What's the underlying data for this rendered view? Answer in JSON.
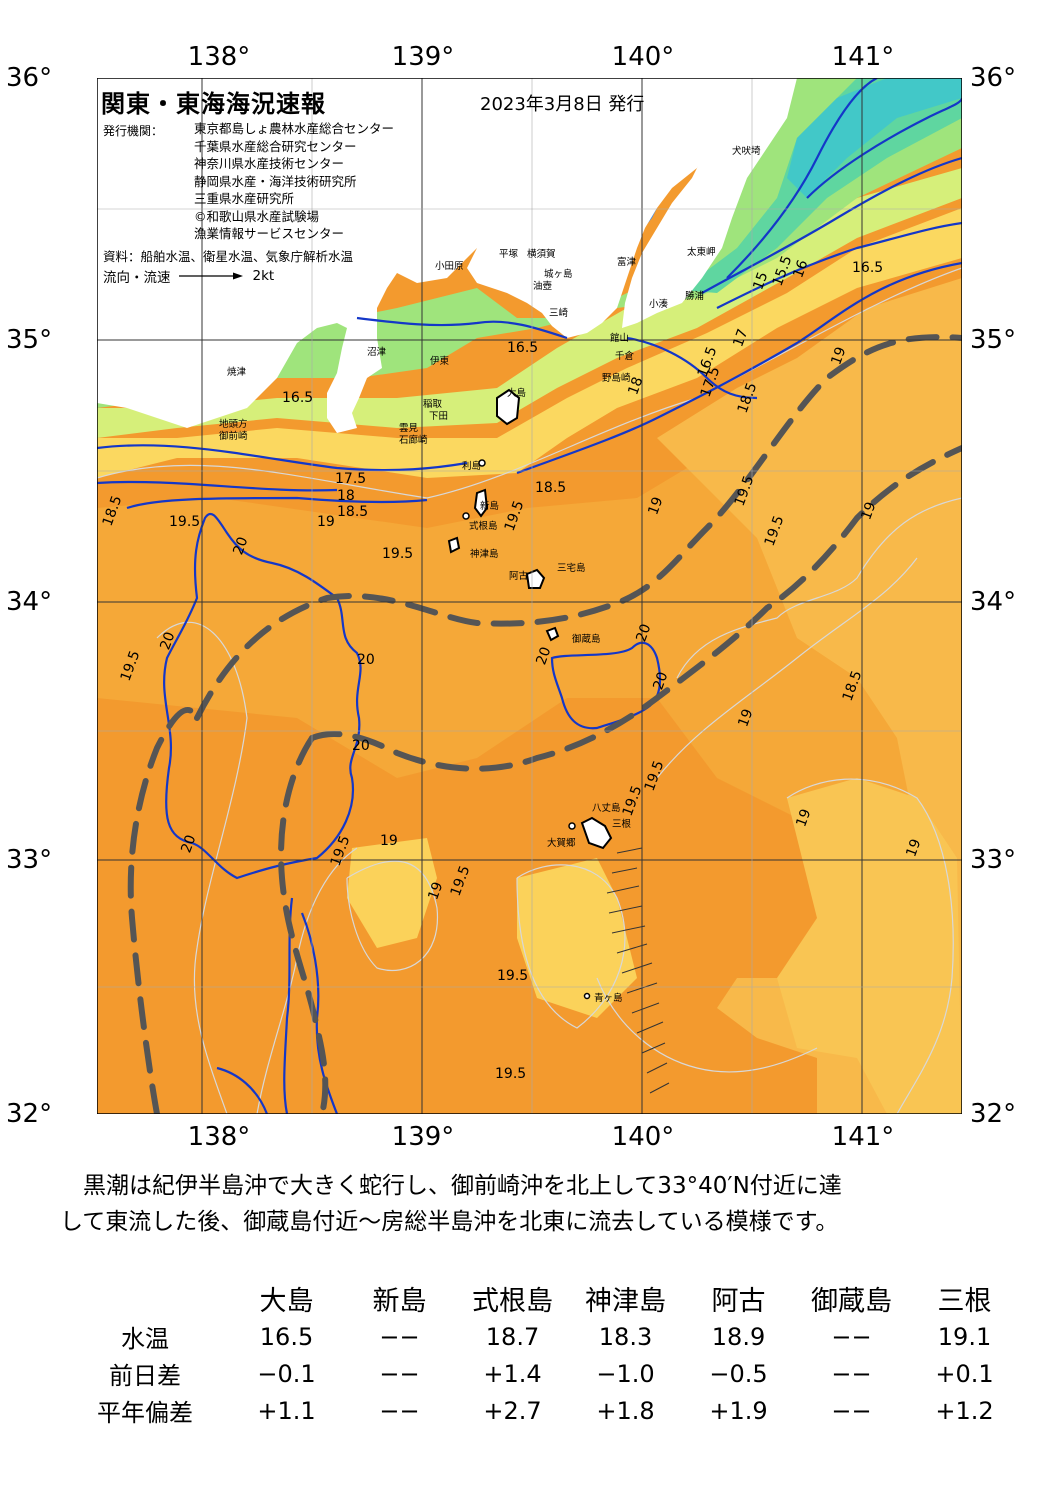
{
  "header": {
    "title": "関東・東海海況速報",
    "issue_date": "2023年3月8日 発行",
    "issuer_label": "発行機関：",
    "issuers": [
      "東京都島しょ農林水産総合センター",
      "千葉県水産総合研究センター",
      "神奈川県水産技術センター",
      "静岡県水産・海洋技術研究所",
      "三重県水産研究所",
      "©和歌山県水産試験場",
      "漁業情報サービスセンター"
    ],
    "source": "資料：船舶水温、衛星水温、気象庁解析水温",
    "flow_label": "流向・流速",
    "flow_scale": "2kt"
  },
  "axes": {
    "lon_top": [
      "138°",
      "139°",
      "140°",
      "141°"
    ],
    "lon_bottom": [
      "138°",
      "139°",
      "140°",
      "141°"
    ],
    "lat_left": [
      "36°",
      "35°",
      "34°",
      "33°",
      "32°"
    ],
    "lat_right": [
      "36°",
      "35°",
      "34°",
      "33°",
      "32°"
    ]
  },
  "place_names": {
    "tsuzaki": "焼津",
    "omaezaki": "御前崎",
    "chikyu": "地頭方",
    "numazu": "沼津",
    "ito": "伊東",
    "inatori": "稲取",
    "shimoda": "下田",
    "iro": "石廊崎",
    "mera": "雲見",
    "odawara": "小田原",
    "hiratsuka": "平塚",
    "yokosuka": "横須賀",
    "jogashima": "城ヶ島",
    "miura": "三崎",
    "aburatsubo": "油壺",
    "tomitsu": "富津",
    "tateyama": "館山",
    "chikura": "千倉",
    "nojima": "野島崎",
    "kominato": "小湊",
    "katsuura": "勝浦",
    "taito": "太東岬",
    "inubo": "犬吠埼",
    "oshima": "大島",
    "toshima": "利島",
    "niijima": "新島",
    "shikine": "式根島",
    "kozu": "神津島",
    "miyake": "三宅島",
    "ako": "阿古",
    "mikura": "御蔵島",
    "hachijo": "八丈島",
    "mine": "三根",
    "okago": "大賀郷",
    "aogashima": "青ヶ島"
  },
  "contour_labels": {
    "sagami": "16.5",
    "suruga": "16.5",
    "boso_e": "16.5",
    "c15": "15",
    "c155": "15.5",
    "c16": "16",
    "c165b": "16.5",
    "c17": "17",
    "c175": "17.5",
    "c18a": "18",
    "c18b": "18",
    "c185a": "18.5",
    "c185b": "18.5",
    "c185c": "18.5",
    "c185d": "18.5",
    "c185e": "18.5",
    "c19a": "19",
    "c19b": "19",
    "c19c": "19",
    "c19d": "19",
    "c19e": "19",
    "c19f": "19",
    "c19g": "19",
    "c19h": "19",
    "c19i": "19",
    "c195a": "19.5",
    "c195b": "19.5",
    "c195c": "19.5",
    "c195d": "19.5",
    "c195e": "19.5",
    "c195f": "19.5",
    "c195g": "19.5",
    "c195h": "19.5",
    "c195i": "19.5",
    "c195j": "19.5",
    "c195k": "19.5",
    "c195l": "19.5",
    "c20a": "20",
    "c20b": "20",
    "c20c": "20",
    "c20d": "20",
    "c20e": "20",
    "c20f": "20",
    "c20g": "20",
    "c20h": "20",
    "c175b": "17.5"
  },
  "colors": {
    "sea_warm": "#f39a2e",
    "sea_mid": "#f7b84a",
    "sea_cool": "#fbd25a",
    "sea_lime": "#d6ef7a",
    "sea_green": "#8fe07a",
    "sea_teal": "#5fd6a0",
    "sea_cyan": "#3fc7e8",
    "sea_blue": "#3f8cf0",
    "land": "#ffffff",
    "contour_blue": "#1437c8",
    "kuroshio_axis": "#555555"
  },
  "summary": [
    "　黒潮は紀伊半島沖で大きく蛇行し、御前崎沖を北上して33°40′N付近に達",
    "して東流した後、御蔵島付近～房総半島沖を北東に流去している模様です。"
  ],
  "table": {
    "stations": [
      "大島",
      "新島",
      "式根島",
      "神津島",
      "阿古",
      "御蔵島",
      "三根"
    ],
    "rows": [
      {
        "label": "水温",
        "values": [
          "16.5",
          "−−",
          "18.7",
          "18.3",
          "18.9",
          "−−",
          "19.1"
        ]
      },
      {
        "label": "前日差",
        "values": [
          "−0.1",
          "−−",
          "+1.4",
          "−1.0",
          "−0.5",
          "−−",
          "+0.1"
        ]
      },
      {
        "label": "平年偏差",
        "values": [
          "+1.1",
          "−−",
          "+2.7",
          "+1.8",
          "+1.9",
          "−−",
          "+1.2"
        ]
      }
    ]
  }
}
